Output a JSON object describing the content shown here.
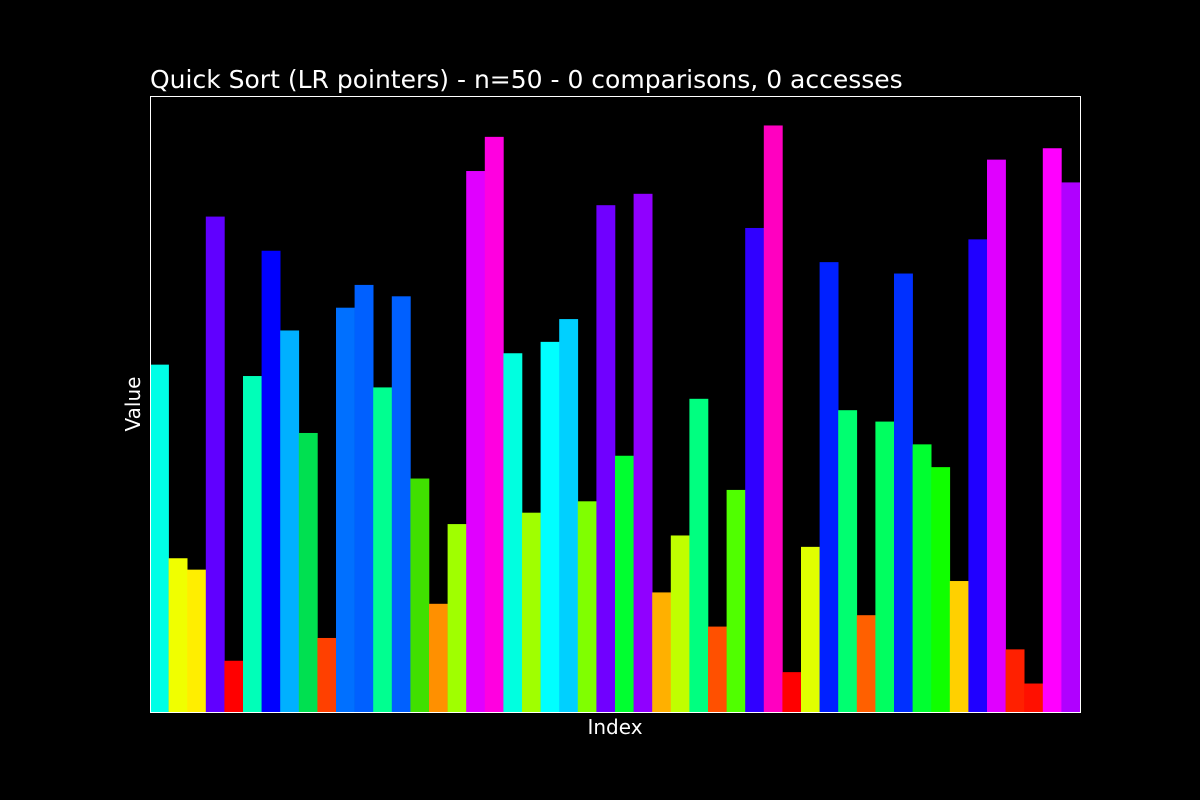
{
  "chart_data": {
    "type": "bar",
    "title": "Quick Sort (LR pointers) - n=50 - 0 comparisons, 0 accesses",
    "x_label": "Index",
    "y_label": "Value",
    "categories": [
      null,
      null,
      null,
      null,
      null,
      null,
      null,
      null,
      null,
      null,
      null,
      null,
      null,
      null,
      null,
      null,
      null,
      null,
      null,
      null,
      null,
      null,
      null,
      null,
      null,
      null,
      null,
      null,
      null,
      null,
      null,
      null,
      null,
      null,
      null,
      null,
      null,
      null,
      null,
      null,
      null,
      null,
      null,
      null,
      null,
      null,
      null,
      null,
      null,
      null
    ],
    "values": [
      30.5,
      13.5,
      12.5,
      43.5,
      4.5,
      29.5,
      40.5,
      33.5,
      24.5,
      6.5,
      35.5,
      37.5,
      28.5,
      36.5,
      20.5,
      9.5,
      16.5,
      47.5,
      50.5,
      31.5,
      17.5,
      32.5,
      34.5,
      18.5,
      44.5,
      22.5,
      45.5,
      10.5,
      15.5,
      27.5,
      7.5,
      19.5,
      42.5,
      51.5,
      3.5,
      14.5,
      39.5,
      26.5,
      8.5,
      25.5,
      38.5,
      23.5,
      21.5,
      11.5,
      41.5,
      48.5,
      5.5,
      2.5,
      49.5,
      46.5
    ],
    "colors": [
      "#00ffe6",
      "#f0ff00",
      "#ffee00",
      "#6000ff",
      "#ff0000",
      "#00ffb8",
      "#0000ff",
      "#00b0ff",
      "#00e050",
      "#ff4000",
      "#0070ff",
      "#0060ff",
      "#00ff90",
      "#0060ff",
      "#40e000",
      "#ff9000",
      "#a0ff00",
      "#e000ff",
      "#ff00e0",
      "#00ffe0",
      "#a0ff00",
      "#00ffff",
      "#00d0ff",
      "#80ff00",
      "#7000ff",
      "#00ff30",
      "#9000ff",
      "#ffb000",
      "#c0ff00",
      "#00ff80",
      "#ff5000",
      "#50ff00",
      "#3000ff",
      "#ff00c0",
      "#ff0000",
      "#e0ff00",
      "#0020ff",
      "#00ff70",
      "#ff6000",
      "#00ff60",
      "#0030ff",
      "#00ff30",
      "#10ff00",
      "#ffd000",
      "#2000ff",
      "#e000ff",
      "#ff2000",
      "#ff1000",
      "#ff00ff",
      "#b000ff"
    ],
    "ylim": [
      0,
      54
    ]
  }
}
